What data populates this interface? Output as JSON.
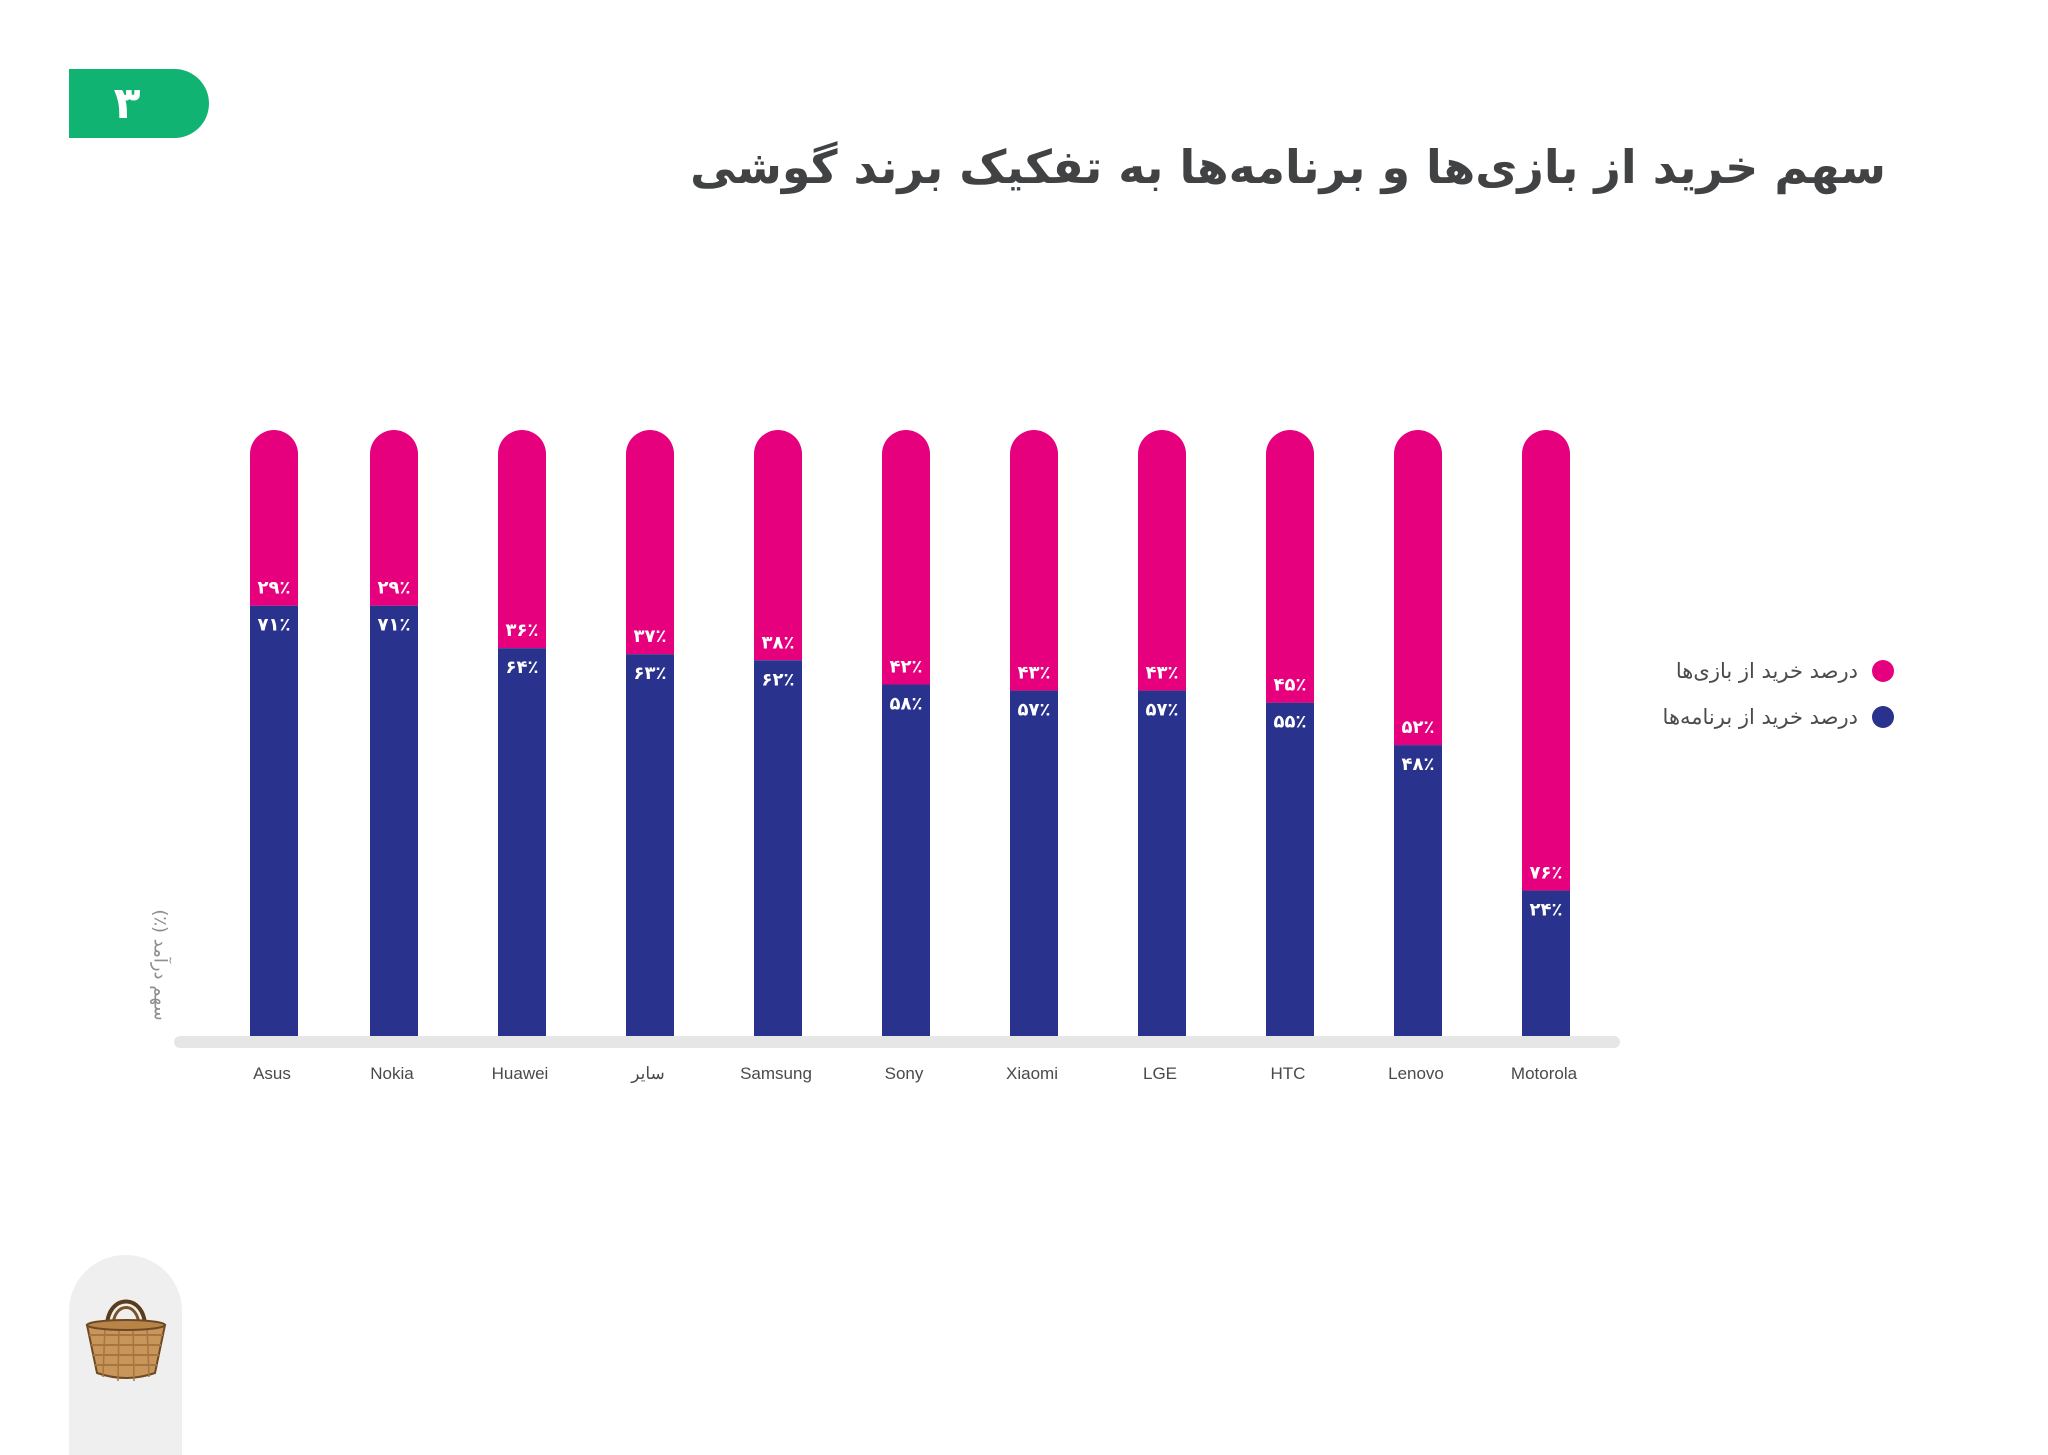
{
  "page": {
    "number": "۳"
  },
  "title": "سهم خرید از بازی‌ها و برنامه‌ها به تفکیک برند گوشی",
  "legend": {
    "games_label": "درصد خرید از بازی‌ها",
    "apps_label": "درصد خرید از برنامه‌ها"
  },
  "colors": {
    "games": "#e6007e",
    "apps": "#29328c",
    "badge": "#11b373"
  },
  "icons": {
    "logo": "basket-icon"
  },
  "chart_data": {
    "type": "bar",
    "stacked": true,
    "ylabel": "سهم درآمد (٪)",
    "ylim": [
      0,
      100
    ],
    "grid": false,
    "legend_position": "right",
    "categories": [
      "Asus",
      "Nokia",
      "Huawei",
      "سایر",
      "Samsung",
      "Sony",
      "Xiaomi",
      "LGE",
      "HTC",
      "Lenovo",
      "Motorola"
    ],
    "series": [
      {
        "name": "درصد خرید از برنامه‌ها",
        "values": [
          71,
          71,
          64,
          63,
          62,
          58,
          57,
          57,
          55,
          48,
          24
        ],
        "labels": [
          "۷۱٪",
          "۷۱٪",
          "۶۴٪",
          "۶۳٪",
          "۶۲٪",
          "۵۸٪",
          "۵۷٪",
          "۵۷٪",
          "۵۵٪",
          "۴۸٪",
          "۲۴٪"
        ]
      },
      {
        "name": "درصد خرید از بازی‌ها",
        "values": [
          29,
          29,
          36,
          37,
          38,
          42,
          43,
          43,
          45,
          52,
          76
        ],
        "labels": [
          "۲۹٪",
          "۲۹٪",
          "۳۶٪",
          "۳۷٪",
          "۳۸٪",
          "۴۲٪",
          "۴۳٪",
          "۴۳٪",
          "۴۵٪",
          "۵۲٪",
          "۷۶٪"
        ]
      }
    ]
  }
}
